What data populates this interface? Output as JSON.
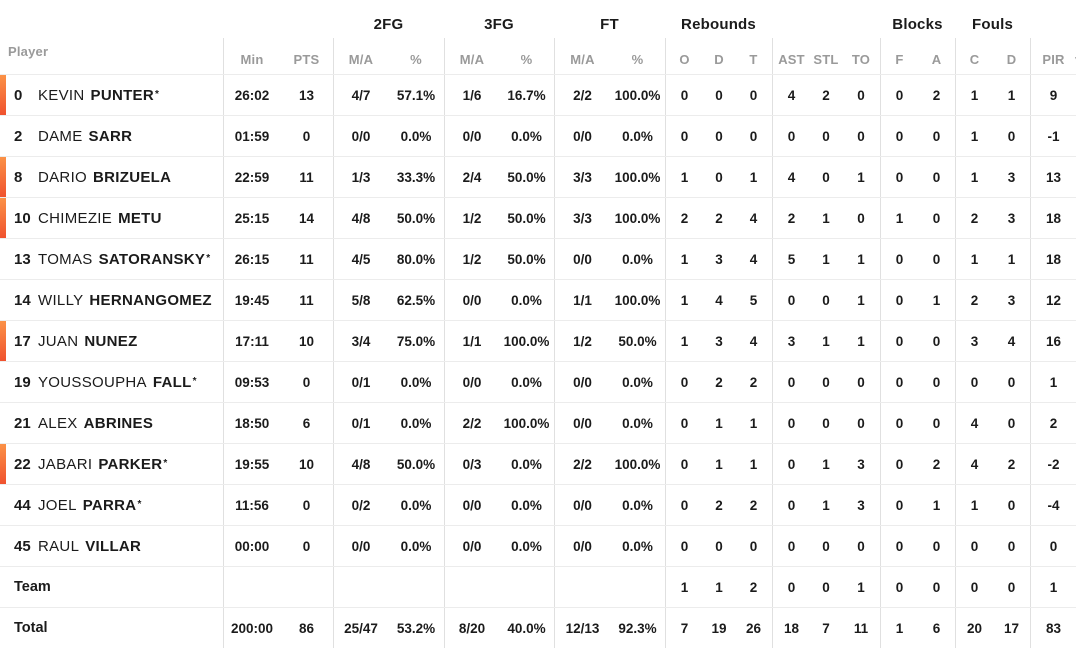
{
  "colors": {
    "accent_top": "#fb9247",
    "accent_bottom": "#f0512e",
    "header_gray": "#9a9a9a",
    "text": "#1b1b1b",
    "divider": "#e0e0e0",
    "row_border": "#ececec"
  },
  "table": {
    "left_header": "Player",
    "groups": [
      {
        "label": "2FG"
      },
      {
        "label": "3FG"
      },
      {
        "label": "FT"
      },
      {
        "label": "Rebounds"
      },
      {
        "label": "Blocks"
      },
      {
        "label": "Fouls"
      }
    ],
    "columns": [
      "Min",
      "PTS",
      "M/A",
      "%",
      "M/A",
      "%",
      "M/A",
      "%",
      "O",
      "D",
      "T",
      "AST",
      "STL",
      "TO",
      "F",
      "A",
      "C",
      "D",
      "PIR"
    ],
    "sorted_column": "PIR",
    "players": [
      {
        "number": "0",
        "first": "KEVIN",
        "last": "PUNTER",
        "starter": true,
        "on_court": true,
        "stats": [
          "26:02",
          "13",
          "4/7",
          "57.1%",
          "1/6",
          "16.7%",
          "2/2",
          "100.0%",
          "0",
          "0",
          "0",
          "4",
          "2",
          "0",
          "0",
          "2",
          "1",
          "1",
          "9"
        ]
      },
      {
        "number": "2",
        "first": "DAME",
        "last": "SARR",
        "starter": false,
        "on_court": false,
        "stats": [
          "01:59",
          "0",
          "0/0",
          "0.0%",
          "0/0",
          "0.0%",
          "0/0",
          "0.0%",
          "0",
          "0",
          "0",
          "0",
          "0",
          "0",
          "0",
          "0",
          "1",
          "0",
          "-1"
        ]
      },
      {
        "number": "8",
        "first": "DARIO",
        "last": "BRIZUELA",
        "starter": false,
        "on_court": true,
        "stats": [
          "22:59",
          "11",
          "1/3",
          "33.3%",
          "2/4",
          "50.0%",
          "3/3",
          "100.0%",
          "1",
          "0",
          "1",
          "4",
          "0",
          "1",
          "0",
          "0",
          "1",
          "3",
          "13"
        ]
      },
      {
        "number": "10",
        "first": "CHIMEZIE",
        "last": "METU",
        "starter": false,
        "on_court": true,
        "stats": [
          "25:15",
          "14",
          "4/8",
          "50.0%",
          "1/2",
          "50.0%",
          "3/3",
          "100.0%",
          "2",
          "2",
          "4",
          "2",
          "1",
          "0",
          "1",
          "0",
          "2",
          "3",
          "18"
        ]
      },
      {
        "number": "13",
        "first": "TOMAS",
        "last": "SATORANSKY",
        "starter": true,
        "on_court": false,
        "stats": [
          "26:15",
          "11",
          "4/5",
          "80.0%",
          "1/2",
          "50.0%",
          "0/0",
          "0.0%",
          "1",
          "3",
          "4",
          "5",
          "1",
          "1",
          "0",
          "0",
          "1",
          "1",
          "18"
        ]
      },
      {
        "number": "14",
        "first": "WILLY",
        "last": "HERNANGOMEZ",
        "starter": false,
        "on_court": false,
        "stats": [
          "19:45",
          "11",
          "5/8",
          "62.5%",
          "0/0",
          "0.0%",
          "1/1",
          "100.0%",
          "1",
          "4",
          "5",
          "0",
          "0",
          "1",
          "0",
          "1",
          "2",
          "3",
          "12"
        ]
      },
      {
        "number": "17",
        "first": "JUAN",
        "last": "NUNEZ",
        "starter": false,
        "on_court": true,
        "stats": [
          "17:11",
          "10",
          "3/4",
          "75.0%",
          "1/1",
          "100.0%",
          "1/2",
          "50.0%",
          "1",
          "3",
          "4",
          "3",
          "1",
          "1",
          "0",
          "0",
          "3",
          "4",
          "16"
        ]
      },
      {
        "number": "19",
        "first": "YOUSSOUPHA",
        "last": "FALL",
        "starter": true,
        "on_court": false,
        "stats": [
          "09:53",
          "0",
          "0/1",
          "0.0%",
          "0/0",
          "0.0%",
          "0/0",
          "0.0%",
          "0",
          "2",
          "2",
          "0",
          "0",
          "0",
          "0",
          "0",
          "0",
          "0",
          "1"
        ]
      },
      {
        "number": "21",
        "first": "ALEX",
        "last": "ABRINES",
        "starter": false,
        "on_court": false,
        "stats": [
          "18:50",
          "6",
          "0/1",
          "0.0%",
          "2/2",
          "100.0%",
          "0/0",
          "0.0%",
          "0",
          "1",
          "1",
          "0",
          "0",
          "0",
          "0",
          "0",
          "4",
          "0",
          "2"
        ]
      },
      {
        "number": "22",
        "first": "JABARI",
        "last": "PARKER",
        "starter": true,
        "on_court": true,
        "stats": [
          "19:55",
          "10",
          "4/8",
          "50.0%",
          "0/3",
          "0.0%",
          "2/2",
          "100.0%",
          "0",
          "1",
          "1",
          "0",
          "1",
          "3",
          "0",
          "2",
          "4",
          "2",
          "-2"
        ]
      },
      {
        "number": "44",
        "first": "JOEL",
        "last": "PARRA",
        "starter": true,
        "on_court": false,
        "stats": [
          "11:56",
          "0",
          "0/2",
          "0.0%",
          "0/0",
          "0.0%",
          "0/0",
          "0.0%",
          "0",
          "2",
          "2",
          "0",
          "1",
          "3",
          "0",
          "1",
          "1",
          "0",
          "-4"
        ]
      },
      {
        "number": "45",
        "first": "RAUL",
        "last": "VILLAR",
        "starter": false,
        "on_court": false,
        "stats": [
          "00:00",
          "0",
          "0/0",
          "0.0%",
          "0/0",
          "0.0%",
          "0/0",
          "0.0%",
          "0",
          "0",
          "0",
          "0",
          "0",
          "0",
          "0",
          "0",
          "0",
          "0",
          "0"
        ]
      }
    ],
    "team_row": {
      "label": "Team",
      "stats": [
        "",
        "",
        "",
        "",
        "",
        "",
        "",
        "",
        "1",
        "1",
        "2",
        "0",
        "0",
        "1",
        "0",
        "0",
        "0",
        "0",
        "1"
      ]
    },
    "total_row": {
      "label": "Total",
      "stats": [
        "200:00",
        "86",
        "25/47",
        "53.2%",
        "8/20",
        "40.0%",
        "12/13",
        "92.3%",
        "7",
        "19",
        "26",
        "18",
        "7",
        "11",
        "1",
        "6",
        "20",
        "17",
        "83"
      ]
    }
  }
}
